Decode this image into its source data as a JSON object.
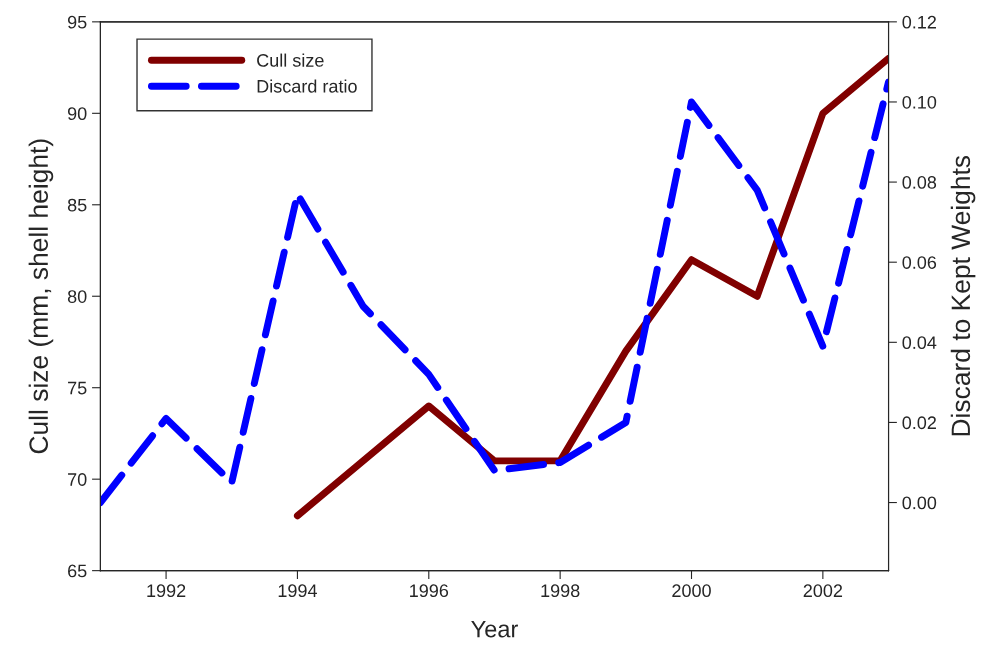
{
  "chart_data": {
    "type": "line",
    "xlabel": "Year",
    "ylabel": "Cull size (mm, shell height)",
    "y2label": "Discard to Kept Weights",
    "xlim": [
      1991,
      2003
    ],
    "xticks": [
      1992,
      1994,
      1996,
      1998,
      2000,
      2002
    ],
    "ylim": [
      65,
      95
    ],
    "yticks": [
      65,
      70,
      75,
      80,
      85,
      90,
      95
    ],
    "y2lim": [
      -0.017,
      0.12
    ],
    "y2ticks": [
      {
        "value": 0,
        "label": "0.00"
      },
      {
        "value": 0.02,
        "label": "0.02"
      },
      {
        "value": 0.04,
        "label": "0.04"
      },
      {
        "value": 0.06,
        "label": "0.06"
      },
      {
        "value": 0.08,
        "label": "0.08"
      },
      {
        "value": 0.1,
        "label": "0.10"
      },
      {
        "value": 0.12,
        "label": "0.12"
      }
    ],
    "grid": false,
    "legend": "top left",
    "series": [
      {
        "name": "Cull size",
        "color": "#800000",
        "line_style": "solid",
        "x": [
          1994,
          1996,
          1997,
          1998,
          1999,
          2000,
          2001,
          2002,
          2003
        ],
        "values": [
          68,
          74,
          71,
          71,
          77,
          82,
          80,
          90,
          93
        ]
      },
      {
        "name": "Discard ratio",
        "color": "#0000ff",
        "line_style": "dashed",
        "axis": "y2",
        "x": [
          1991,
          1992,
          1993,
          1994,
          1995,
          1996,
          1997,
          1998,
          1999,
          2000,
          2001,
          2002,
          2003
        ],
        "values": [
          0.0,
          0.021,
          0.005,
          0.077,
          0.049,
          0.032,
          0.008,
          0.01,
          0.02,
          0.1,
          0.078,
          0.039,
          0.105
        ]
      }
    ]
  }
}
